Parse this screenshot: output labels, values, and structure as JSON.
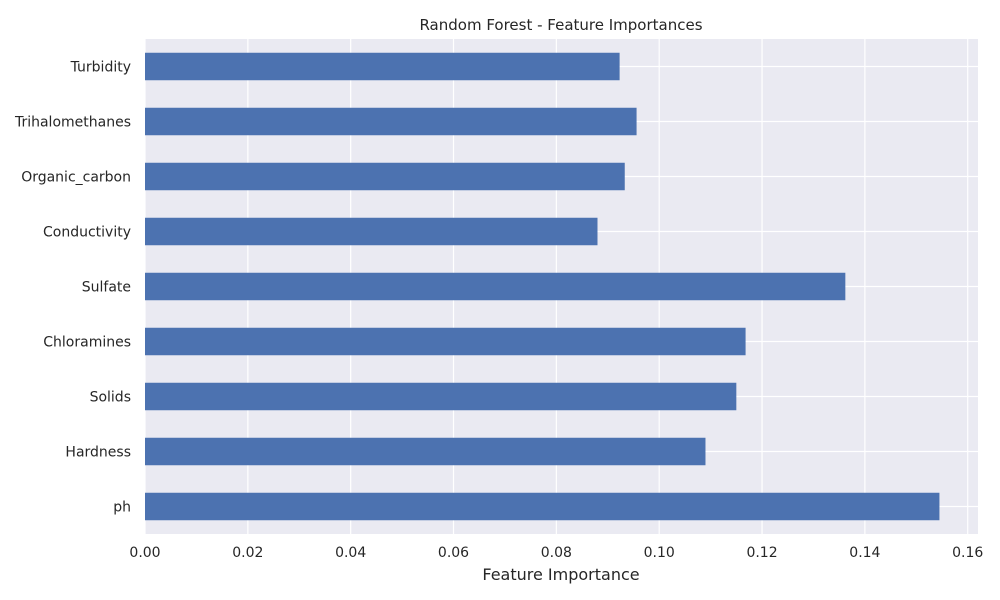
{
  "chart_data": {
    "type": "bar",
    "orientation": "horizontal",
    "title": "Random Forest - Feature Importances",
    "xlabel": "Feature Importance",
    "ylabel": "",
    "categories": [
      "ph",
      "Hardness",
      "Solids",
      "Chloramines",
      "Sulfate",
      "Conductivity",
      "Organic_carbon",
      "Trihalomethanes",
      "Turbidity"
    ],
    "values": [
      0.1545,
      0.109,
      0.115,
      0.1168,
      0.1362,
      0.088,
      0.0933,
      0.0956,
      0.0923
    ],
    "xlim": [
      0,
      0.162
    ],
    "xticks": [
      0.0,
      0.02,
      0.04,
      0.06,
      0.08,
      0.1,
      0.12,
      0.14,
      0.16
    ],
    "xtick_labels": [
      "0.00",
      "0.02",
      "0.04",
      "0.06",
      "0.08",
      "0.10",
      "0.12",
      "0.14",
      "0.16"
    ],
    "grid": true,
    "colors": {
      "bar": "#4c72b0",
      "plot_background": "#eaeaf2",
      "grid": "#ffffff"
    }
  }
}
